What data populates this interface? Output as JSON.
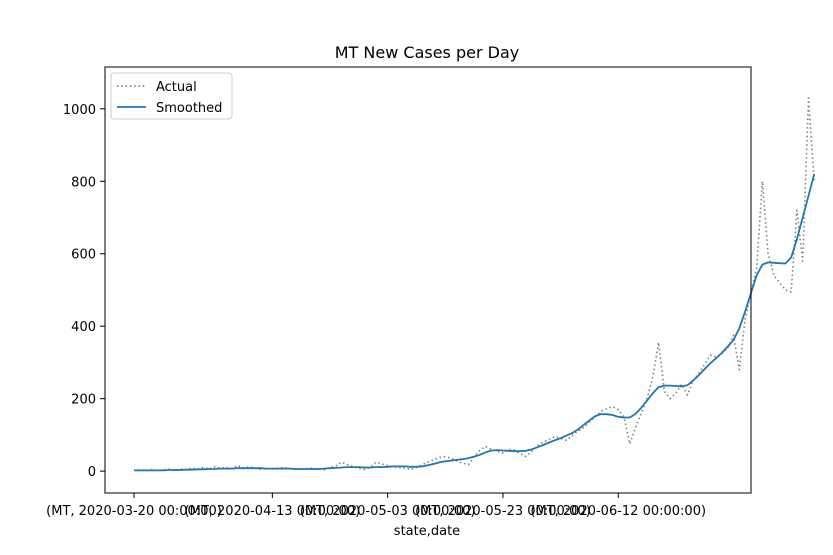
{
  "chart_data": {
    "type": "line",
    "title": "MT New Cases per Day",
    "xlabel": "state,date",
    "ylabel": "",
    "x_start": "2020-03-20",
    "x_end": "2020-06-30",
    "ylim": [
      -30,
      1085
    ],
    "yticks": [
      0,
      200,
      400,
      600,
      800,
      1000
    ],
    "xticks": [
      {
        "date": "2020-03-20",
        "label": "(MT, 2020-03-20 00:00:00)"
      },
      {
        "date": "2020-04-13",
        "label": "(MT, 2020-04-13 00:00:00)"
      },
      {
        "date": "2020-05-03",
        "label": "(MT, 2020-05-03 00:00:00)"
      },
      {
        "date": "2020-05-23",
        "label": "(MT, 2020-05-23 00:00:00)"
      },
      {
        "date": "2020-06-12",
        "label": "(MT, 2020-06-12 00:00:00)"
      }
    ],
    "legend": {
      "position": "top-left"
    },
    "series": [
      {
        "name": "Actual",
        "color": "#808080",
        "style": "dotted",
        "values": [
          2,
          3,
          1,
          4,
          2,
          3,
          5,
          2,
          6,
          4,
          8,
          5,
          10,
          6,
          12,
          8,
          10,
          7,
          15,
          9,
          12,
          8,
          5,
          7,
          6,
          8,
          10,
          7,
          6,
          5,
          7,
          8,
          6,
          4,
          10,
          14,
          25,
          18,
          12,
          8,
          5,
          10,
          25,
          20,
          15,
          12,
          10,
          8,
          5,
          10,
          18,
          25,
          32,
          38,
          40,
          36,
          28,
          22,
          18,
          40,
          58,
          68,
          60,
          55,
          50,
          60,
          58,
          48,
          40,
          55,
          70,
          80,
          88,
          95,
          90,
          85,
          98,
          110,
          120,
          135,
          150,
          165,
          172,
          178,
          170,
          150,
          75,
          120,
          160,
          200,
          260,
          355,
          220,
          200,
          215,
          240,
          210,
          250,
          270,
          295,
          320,
          315,
          325,
          340,
          375,
          280,
          420,
          490,
          560,
          800,
          600,
          540,
          520,
          500,
          495,
          720,
          580,
          1030,
          800
        ]
      },
      {
        "name": "Smoothed",
        "color": "#1f77b4",
        "style": "solid",
        "values": [
          2,
          2,
          2,
          2,
          2,
          2,
          3,
          3,
          3,
          4,
          4,
          5,
          5,
          6,
          6,
          7,
          7,
          7,
          8,
          8,
          8,
          8,
          8,
          7,
          7,
          7,
          7,
          7,
          6,
          6,
          6,
          6,
          6,
          7,
          8,
          9,
          10,
          11,
          11,
          11,
          10,
          10,
          11,
          11,
          12,
          13,
          13,
          13,
          12,
          12,
          13,
          16,
          20,
          24,
          27,
          29,
          31,
          33,
          36,
          40,
          45,
          52,
          57,
          58,
          57,
          56,
          55,
          55,
          56,
          60,
          66,
          72,
          79,
          85,
          91,
          98,
          105,
          115,
          127,
          140,
          152,
          157,
          157,
          155,
          150,
          148,
          148,
          158,
          175,
          195,
          215,
          232,
          236,
          236,
          235,
          234,
          237,
          250,
          265,
          282,
          298,
          312,
          327,
          344,
          362,
          394,
          440,
          490,
          540,
          570,
          576,
          575,
          574,
          573,
          590,
          640,
          700,
          760,
          820
        ]
      }
    ]
  }
}
